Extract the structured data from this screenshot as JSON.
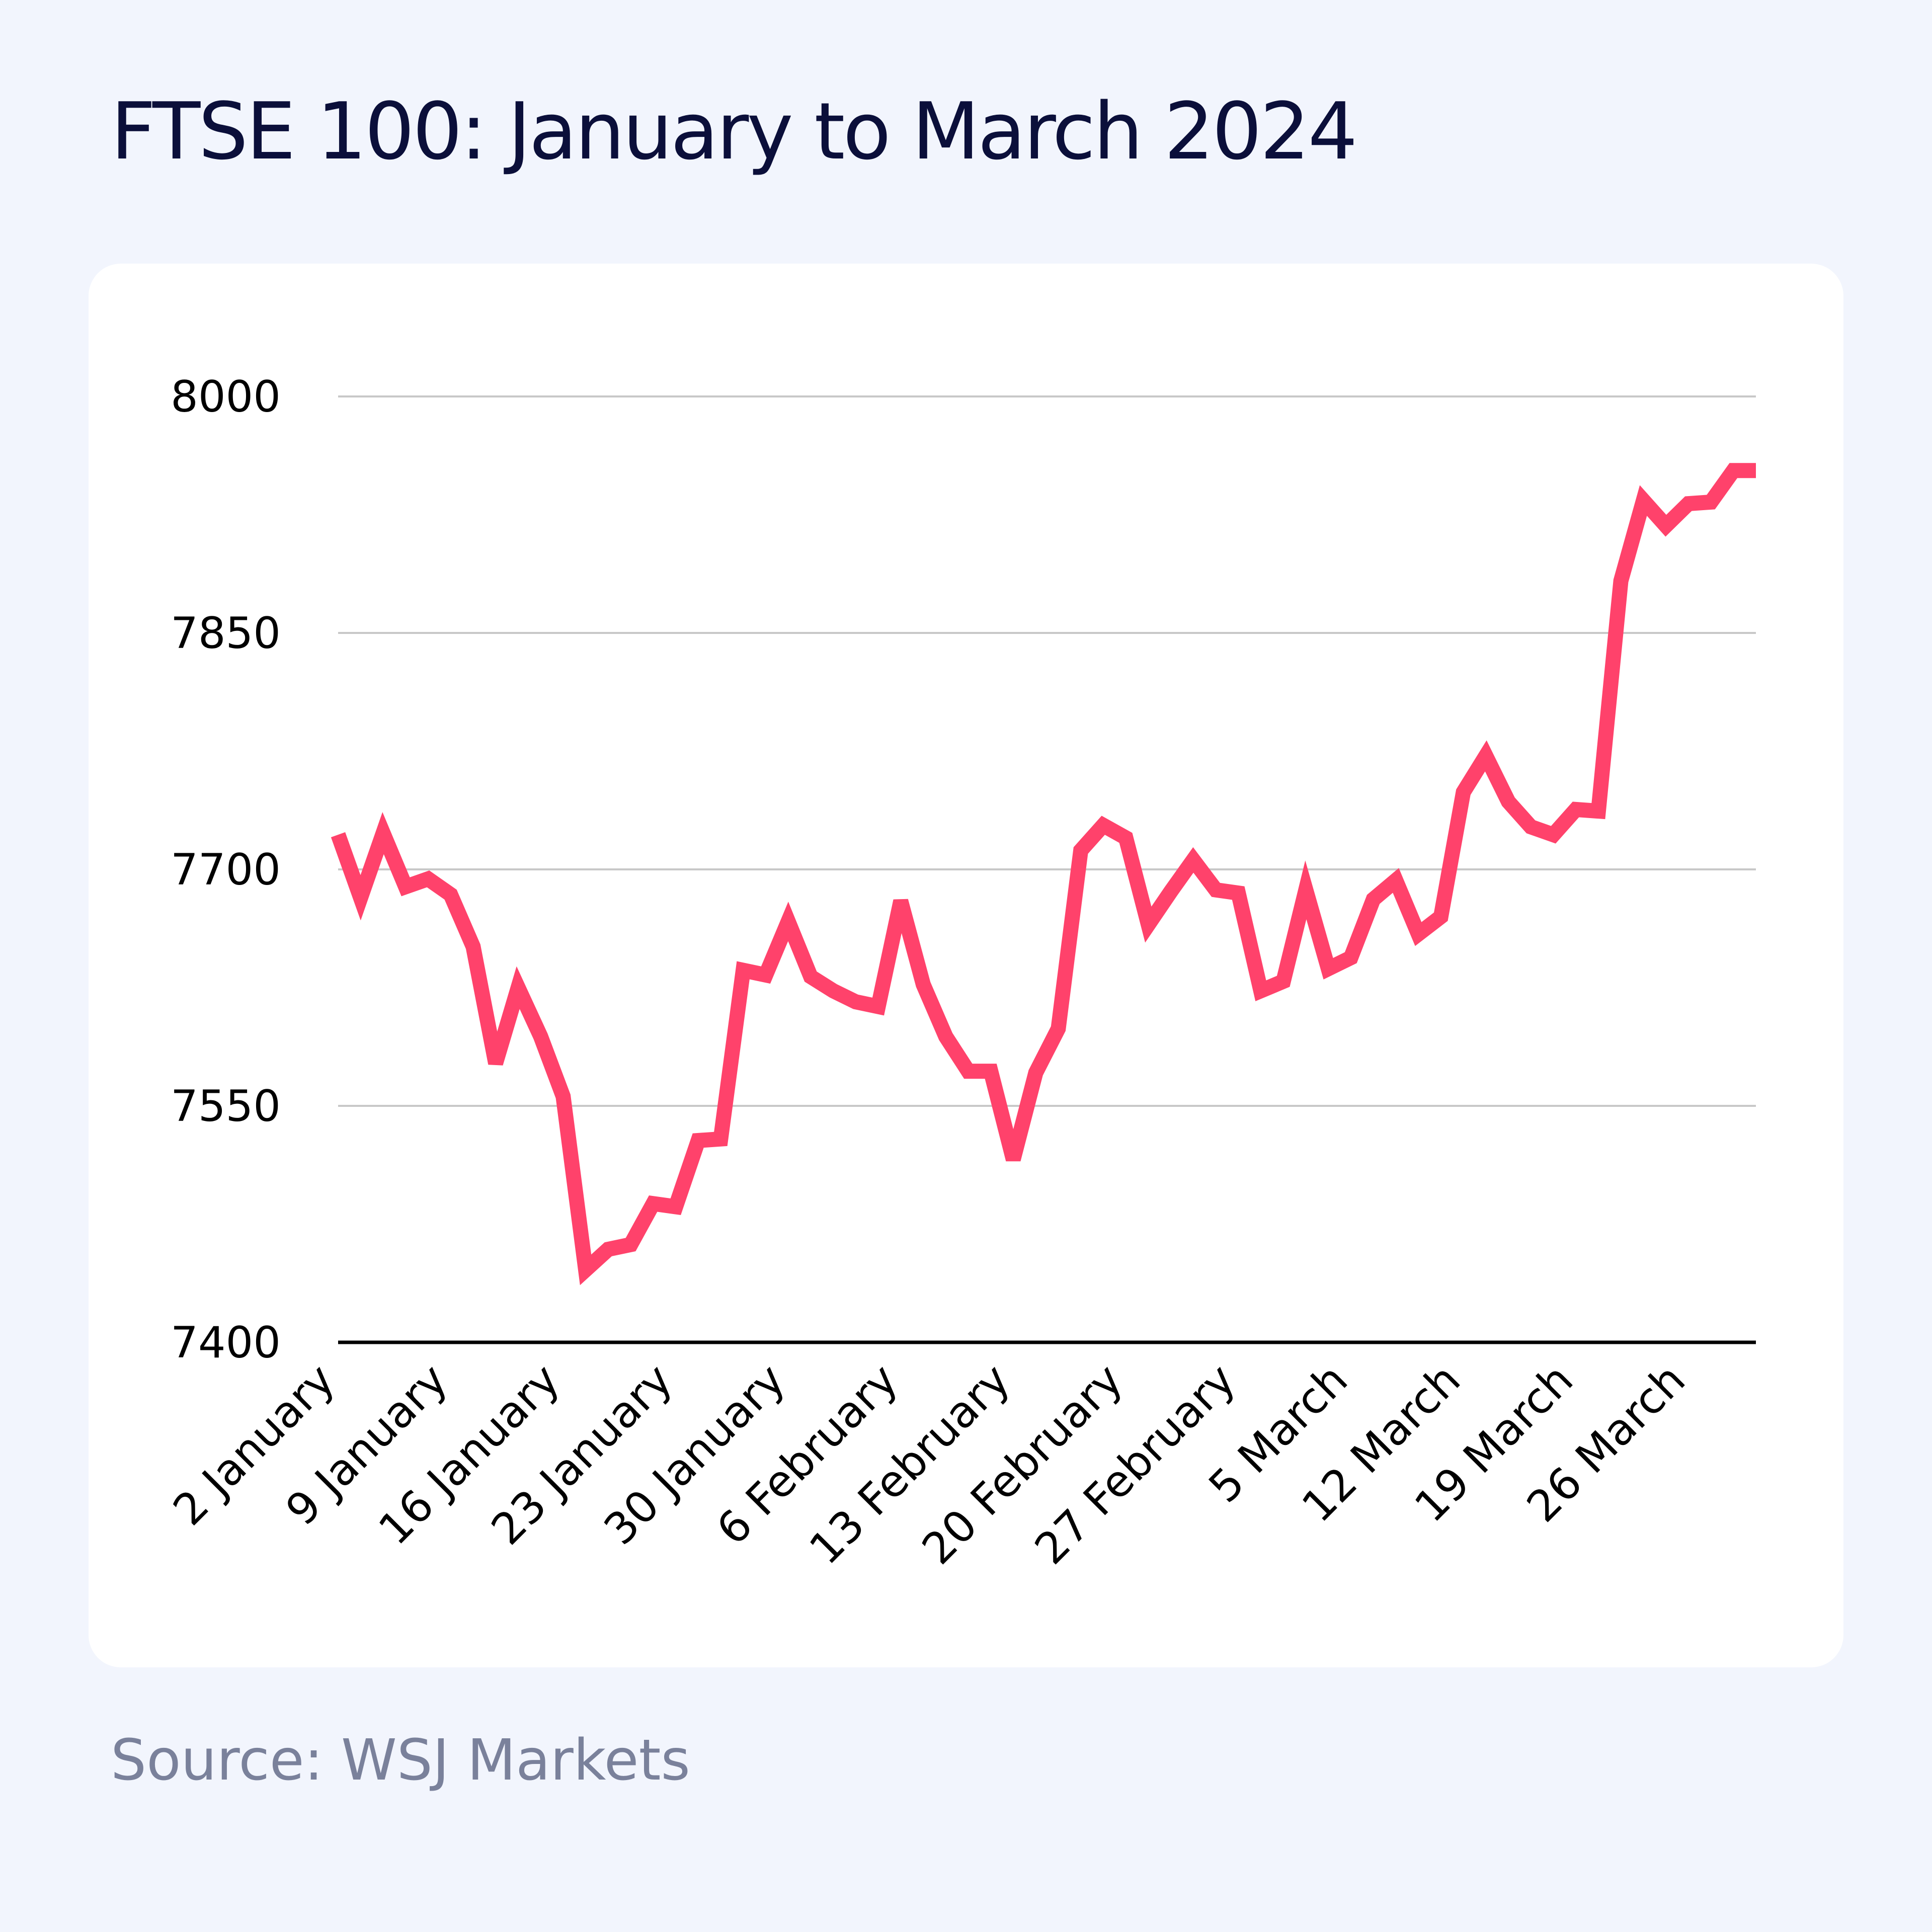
{
  "title": "FTSE 100: January to March 2024",
  "source": "Source: WSJ Markets",
  "colors": {
    "line": "#ff426b",
    "grid": "#c8c8c8",
    "axis": "#000000",
    "title": "#0b0f3a",
    "source": "#7a819b",
    "background": "#f2f5fd",
    "card": "#ffffff"
  },
  "chart_data": {
    "type": "line",
    "title": "FTSE 100: January to March 2024",
    "xlabel": "",
    "ylabel": "",
    "ylim": [
      7400,
      8000
    ],
    "yticks": [
      7400,
      7550,
      7700,
      7850,
      8000
    ],
    "ytick_labels": [
      "7400",
      "7550",
      "7700",
      "7850",
      "8000"
    ],
    "xtick_labels": [
      "2 January",
      "9 January",
      "16 January",
      "23 January",
      "30 January",
      "6 February",
      "13 February",
      "20 February",
      "27 February",
      "5 March",
      "12 March",
      "19 March",
      "26 March"
    ],
    "grid": true,
    "legend": "none",
    "series": [
      {
        "values": [
          7722,
          7682,
          7723,
          7689,
          7694,
          7684,
          7651,
          7577,
          7625,
          7594,
          7556,
          7446,
          7459,
          7462,
          7488,
          7486,
          7528,
          7529,
          7636,
          7633,
          7667,
          7632,
          7623,
          7616,
          7613,
          7680,
          7627,
          7594,
          7572,
          7572,
          7516,
          7571,
          7599,
          7712,
          7728,
          7720,
          7665,
          7686,
          7706,
          7687,
          7685,
          7623,
          7629,
          7687,
          7637,
          7644,
          7681,
          7693,
          7659,
          7670,
          7749,
          7772,
          7743,
          7727,
          7722,
          7738,
          7737,
          7883,
          7934,
          7918,
          7932,
          7933,
          7953,
          7953
        ]
      }
    ]
  }
}
